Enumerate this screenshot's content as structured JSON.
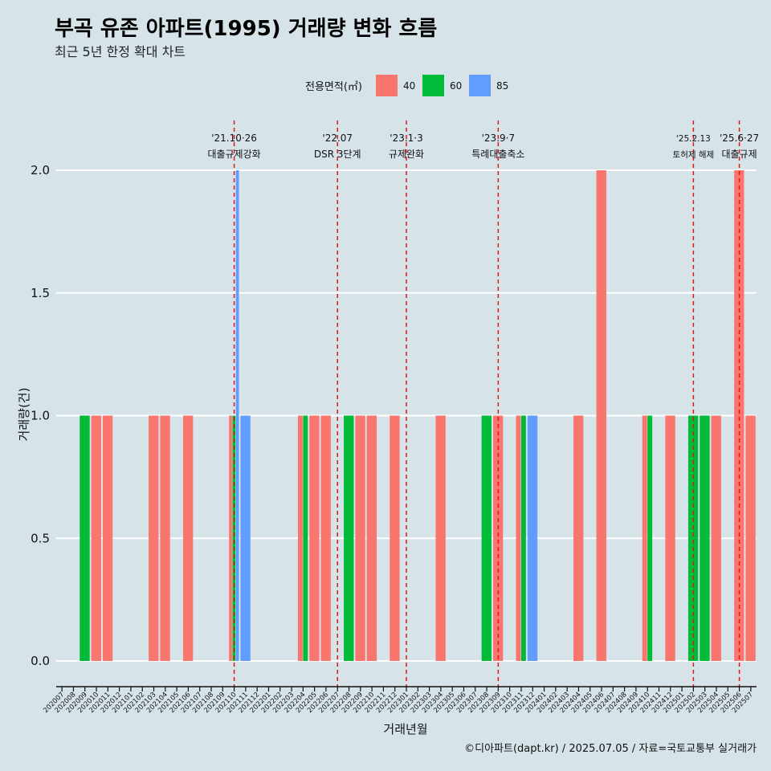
{
  "title": "부곡 유존 아파트(1995) 거래량 변화 흐름",
  "subtitle": "최근 5년 한정 확대 차트",
  "caption": "©디아파트(dapt.kr) / 2025.07.05 / 자료=국토교통부 실거래가",
  "legend": {
    "title": "전용면적(㎡)",
    "items": [
      {
        "label": "40",
        "color": "#f8766d"
      },
      {
        "label": "60",
        "color": "#00ba38"
      },
      {
        "label": "85",
        "color": "#619cff"
      }
    ]
  },
  "chart_data": {
    "type": "bar",
    "xlabel": "거래년월",
    "ylabel": "거래량(건)",
    "ylim": [
      0,
      2
    ],
    "yticks": [
      "0.0",
      "0.5",
      "1.0",
      "1.5",
      "2.0"
    ],
    "grid": "horizontal",
    "legend_position": "top",
    "categories": [
      "202007",
      "202008",
      "202009",
      "202010",
      "202011",
      "202012",
      "202101",
      "202102",
      "202103",
      "202104",
      "202105",
      "202106",
      "202107",
      "202108",
      "202109",
      "202110",
      "202111",
      "202112",
      "202201",
      "202202",
      "202203",
      "202204",
      "202205",
      "202206",
      "202207",
      "202208",
      "202209",
      "202210",
      "202211",
      "202212",
      "202301",
      "202302",
      "202303",
      "202304",
      "202305",
      "202306",
      "202307",
      "202308",
      "202309",
      "202310",
      "202311",
      "202312",
      "202401",
      "202402",
      "202403",
      "202404",
      "202405",
      "202406",
      "202407",
      "202408",
      "202409",
      "202410",
      "202411",
      "202412",
      "202501",
      "202502",
      "202503",
      "202504",
      "202505",
      "202506",
      "202507"
    ],
    "series": [
      {
        "name": "40",
        "color": "#f8766d",
        "points": [
          {
            "month": "202010",
            "value": 1
          },
          {
            "month": "202011",
            "value": 1
          },
          {
            "month": "202103",
            "value": 1
          },
          {
            "month": "202104",
            "value": 1
          },
          {
            "month": "202106",
            "value": 1
          },
          {
            "month": "202110",
            "value": 1
          },
          {
            "month": "202204",
            "value": 1
          },
          {
            "month": "202205",
            "value": 1
          },
          {
            "month": "202206",
            "value": 1
          },
          {
            "month": "202209",
            "value": 1
          },
          {
            "month": "202210",
            "value": 1
          },
          {
            "month": "202212",
            "value": 1
          },
          {
            "month": "202304",
            "value": 1
          },
          {
            "month": "202309",
            "value": 1
          },
          {
            "month": "202311",
            "value": 1
          },
          {
            "month": "202404",
            "value": 1
          },
          {
            "month": "202406",
            "value": 2
          },
          {
            "month": "202410",
            "value": 1
          },
          {
            "month": "202412",
            "value": 1
          },
          {
            "month": "202504",
            "value": 1
          },
          {
            "month": "202506",
            "value": 2
          },
          {
            "month": "202507",
            "value": 1
          }
        ]
      },
      {
        "name": "60",
        "color": "#00ba38",
        "points": [
          {
            "month": "202009",
            "value": 1
          },
          {
            "month": "202110",
            "value": 1
          },
          {
            "month": "202204",
            "value": 1
          },
          {
            "month": "202208",
            "value": 1
          },
          {
            "month": "202308",
            "value": 1
          },
          {
            "month": "202311",
            "value": 1
          },
          {
            "month": "202410",
            "value": 1
          },
          {
            "month": "202502",
            "value": 1
          },
          {
            "month": "202503",
            "value": 1
          }
        ]
      },
      {
        "name": "85",
        "color": "#619cff",
        "points": [
          {
            "month": "202110",
            "value": 2
          },
          {
            "month": "202111",
            "value": 1
          },
          {
            "month": "202312",
            "value": 1
          }
        ]
      }
    ],
    "annotations": [
      {
        "month": "202110",
        "offset": 0.0,
        "line1": "'21.10·26",
        "line2": "대출규제강화",
        "small": false
      },
      {
        "month": "202207",
        "offset": 0.0,
        "line1": "'22.07",
        "line2": "DSR 3단계",
        "small": false
      },
      {
        "month": "202301",
        "offset": 0.0,
        "line1": "'23.1·3",
        "line2": "규제완화",
        "small": false
      },
      {
        "month": "202309",
        "offset": 0.0,
        "line1": "'23.9·7",
        "line2": "특례대출축소",
        "small": false
      },
      {
        "month": "202502",
        "offset": 0.0,
        "line1": "'25.2.13",
        "line2": "토허제 해제",
        "small": true
      },
      {
        "month": "202506",
        "offset": 0.0,
        "line1": "'25.6·27",
        "line2": "대출규제",
        "small": false
      }
    ]
  }
}
